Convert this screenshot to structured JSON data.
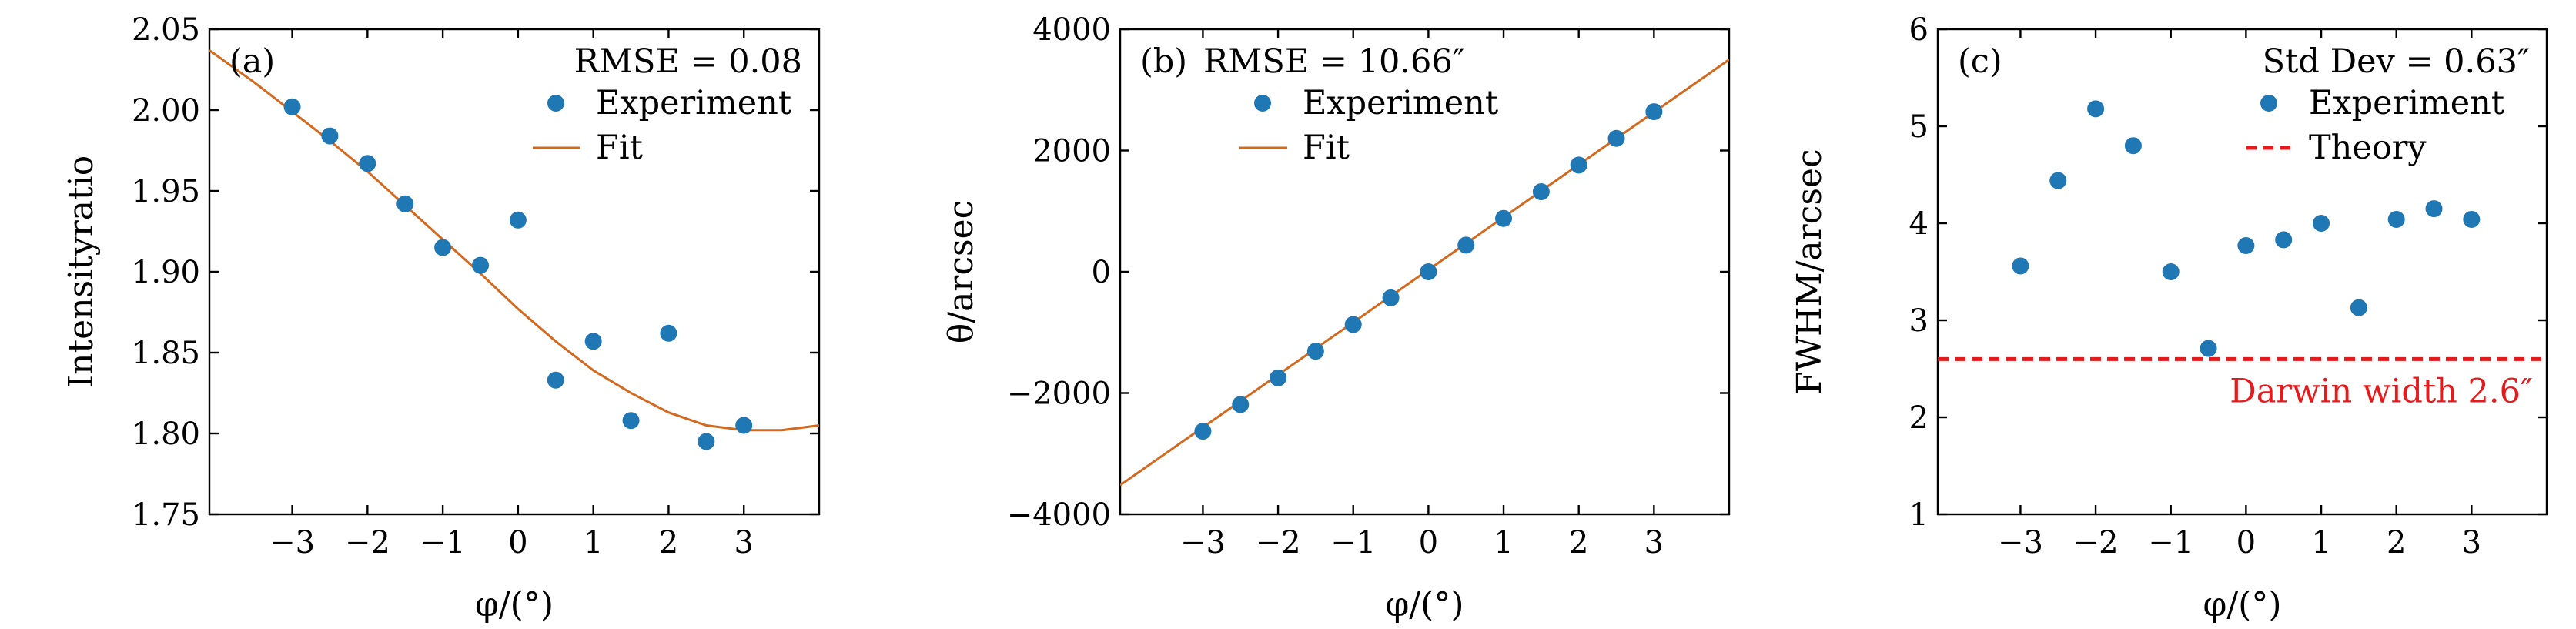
{
  "figure": {
    "panels_count": 3
  },
  "colors": {
    "marker": "#1f77b4",
    "fit": "#d2691e",
    "theory": "#e41a1c",
    "darwin_label": "#e41a1c"
  },
  "chart_data": [
    {
      "type": "scatter",
      "panel_label": "(a)",
      "annotation": "RMSE = 0.08",
      "xlabel": "φ/(°)",
      "ylabel": "Intensityratio",
      "xlim": [
        -4.1,
        4.0
      ],
      "ylim": [
        1.75,
        2.05
      ],
      "xticks": [
        -3,
        -2,
        -1,
        0,
        1,
        2,
        3
      ],
      "xtick_labels": [
        "−3",
        "−2",
        "−1",
        "0",
        "1",
        "2",
        "3"
      ],
      "yticks": [
        1.75,
        1.8,
        1.85,
        1.9,
        1.95,
        2.0,
        2.05
      ],
      "ytick_labels": [
        "1.75",
        "1.80",
        "1.85",
        "1.90",
        "1.95",
        "2.00",
        "2.05"
      ],
      "legend": {
        "position": "top-right",
        "entries": [
          "Experiment",
          "Fit"
        ]
      },
      "series": [
        {
          "name": "Experiment",
          "kind": "points",
          "x": [
            -3,
            -2.5,
            -2,
            -1.5,
            -1,
            -0.5,
            0,
            0.5,
            1,
            1.5,
            2,
            2.5,
            3
          ],
          "y": [
            2.002,
            1.984,
            1.967,
            1.942,
            1.915,
            1.904,
            1.932,
            1.833,
            1.857,
            1.808,
            1.862,
            1.795,
            1.805
          ]
        },
        {
          "name": "Fit",
          "kind": "line",
          "x": [
            -4.1,
            -3.5,
            -3.0,
            -2.5,
            -2.0,
            -1.5,
            -1.0,
            -0.5,
            0.0,
            0.5,
            1.0,
            1.5,
            2.0,
            2.5,
            3.0,
            3.5,
            4.0
          ],
          "y": [
            2.037,
            2.017,
            1.999,
            1.981,
            1.962,
            1.941,
            1.92,
            1.899,
            1.877,
            1.857,
            1.839,
            1.825,
            1.813,
            1.805,
            1.802,
            1.802,
            1.805
          ]
        }
      ]
    },
    {
      "type": "scatter",
      "panel_label": "(b)",
      "annotation": "RMSE = 10.66″",
      "xlabel": "φ/(°)",
      "ylabel": "θ/arcsec",
      "xlim": [
        -4.1,
        4.0
      ],
      "ylim": [
        -4000,
        4000
      ],
      "xticks": [
        -3,
        -2,
        -1,
        0,
        1,
        2,
        3
      ],
      "xtick_labels": [
        "−3",
        "−2",
        "−1",
        "0",
        "1",
        "2",
        "3"
      ],
      "yticks": [
        -4000,
        -2000,
        0,
        2000,
        4000
      ],
      "ytick_labels": [
        "−4000",
        "−2000",
        "0",
        "2000",
        "4000"
      ],
      "legend": {
        "position": "top-left",
        "entries": [
          "Experiment",
          "Fit"
        ]
      },
      "series": [
        {
          "name": "Experiment",
          "kind": "points",
          "x": [
            -3,
            -2.5,
            -2,
            -1.5,
            -1,
            -0.5,
            0,
            0.5,
            1,
            1.5,
            2,
            2.5,
            3
          ],
          "y": [
            -2630,
            -2190,
            -1750,
            -1310,
            -870,
            -430,
            0,
            440,
            880,
            1320,
            1760,
            2200,
            2640
          ]
        },
        {
          "name": "Fit",
          "kind": "line",
          "x": [
            -4.1,
            4.0
          ],
          "y": [
            -3520,
            3500
          ]
        }
      ]
    },
    {
      "type": "scatter",
      "panel_label": "(c)",
      "annotation": "Std Dev = 0.63″",
      "xlabel": "φ/(°)",
      "ylabel": "FWHM/arcsec",
      "xlim": [
        -4.1,
        4.0
      ],
      "ylim": [
        1,
        6
      ],
      "xticks": [
        -3,
        -2,
        -1,
        0,
        1,
        2,
        3
      ],
      "xtick_labels": [
        "−3",
        "−2",
        "−1",
        "0",
        "1",
        "2",
        "3"
      ],
      "yticks": [
        1,
        2,
        3,
        4,
        5,
        6
      ],
      "ytick_labels": [
        "1",
        "2",
        "3",
        "4",
        "5",
        "6"
      ],
      "legend": {
        "position": "top-right",
        "entries": [
          "Experiment",
          "Theory"
        ]
      },
      "reference_line": {
        "name": "Theory",
        "y": 2.6,
        "label": "Darwin width 2.6″"
      },
      "series": [
        {
          "name": "Experiment",
          "kind": "points",
          "x": [
            -3,
            -2.5,
            -2,
            -1.5,
            -1,
            -0.5,
            0,
            0.5,
            1,
            1.5,
            2,
            2.5,
            3
          ],
          "y": [
            3.56,
            4.44,
            5.18,
            4.8,
            3.5,
            2.71,
            3.77,
            3.83,
            4.0,
            3.13,
            4.04,
            4.15,
            4.04
          ]
        }
      ]
    }
  ]
}
